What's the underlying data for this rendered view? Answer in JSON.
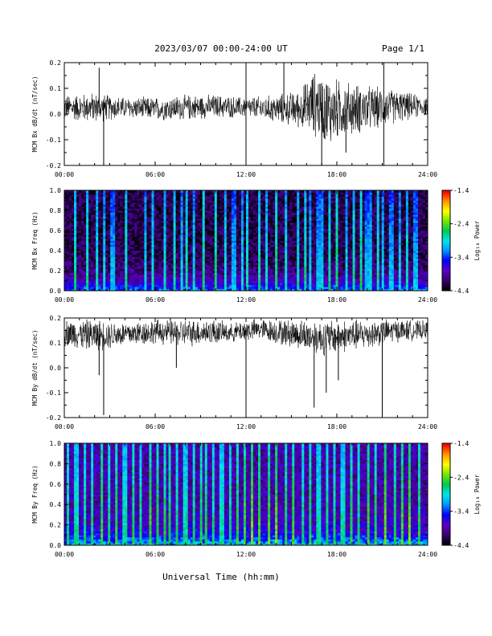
{
  "header": {
    "title": "2023/03/07  00:00-24:00 UT",
    "page": "Page 1/1"
  },
  "xaxis": {
    "label": "Universal Time (hh:mm)",
    "ticks": [
      "00:00",
      "06:00",
      "12:00",
      "18:00",
      "24:00"
    ]
  },
  "colorbar": {
    "label": "Log₁₀ Power",
    "ticks": [
      "-1.4",
      "-2.4",
      "-3.4",
      "-4.4"
    ],
    "range": [
      -4.4,
      -1.4
    ],
    "colormap": [
      "#000000",
      "#3a0070",
      "#5a00c8",
      "#0000ff",
      "#0096ff",
      "#00e6e6",
      "#00c850",
      "#78e600",
      "#ffff00",
      "#ff9600",
      "#ff0000"
    ]
  },
  "chart_data": [
    {
      "type": "line",
      "ylabel": "MCM Bx dB/dt (nT/sec)",
      "xlim": [
        0,
        24
      ],
      "ylim": [
        -0.2,
        0.2
      ],
      "yticks": [
        "0.2",
        "0.1",
        "0.0",
        "-0.1",
        "-0.2"
      ],
      "envelope": {
        "hours": [
          0,
          2,
          4,
          6,
          8,
          10,
          12,
          14,
          15.5,
          16.5,
          17.5,
          18.5,
          20,
          22,
          24
        ],
        "upper": [
          0.08,
          0.09,
          0.07,
          0.07,
          0.08,
          0.08,
          0.07,
          0.08,
          0.1,
          0.18,
          0.16,
          0.14,
          0.12,
          0.1,
          0.07
        ],
        "lower": [
          -0.03,
          -0.04,
          -0.02,
          -0.03,
          -0.03,
          -0.02,
          -0.02,
          -0.04,
          -0.06,
          -0.1,
          -0.14,
          -0.1,
          -0.08,
          -0.04,
          -0.01
        ]
      },
      "spikes": [
        {
          "hour": 2.6,
          "value": -0.21
        },
        {
          "hour": 2.3,
          "value": 0.18
        },
        {
          "hour": 12.0,
          "value": -0.21
        },
        {
          "hour": 12.0,
          "value": 0.21
        },
        {
          "hour": 14.5,
          "value": 0.2
        },
        {
          "hour": 17.0,
          "value": -0.2
        },
        {
          "hour": 18.6,
          "value": -0.15
        },
        {
          "hour": 21.1,
          "value": -0.21
        },
        {
          "hour": 21.1,
          "value": 0.2
        }
      ]
    },
    {
      "type": "heatmap",
      "ylabel": "MCM Bx Freq (Hz)",
      "xlim": [
        0,
        24
      ],
      "ylim": [
        0.0,
        1.0
      ],
      "yticks": [
        "1.0",
        "0.8",
        "0.6",
        "0.4",
        "0.2",
        "0.0"
      ],
      "value_unit": "Log10 Power",
      "background_power": -4.2,
      "low_freq_power": -3.0,
      "broadband_hours": [
        0.7,
        1.5,
        2.2,
        2.7,
        3.2,
        4.1,
        5.3,
        5.8,
        6.6,
        7.3,
        7.7,
        8.1,
        8.5,
        9.2,
        10.0,
        10.6,
        11.2,
        11.7,
        12.1,
        12.9,
        13.4,
        14.0,
        14.6,
        15.4,
        15.9,
        16.3,
        16.8,
        17.1,
        17.5,
        18.0,
        18.7,
        19.1,
        19.6,
        20.0,
        20.3,
        20.7,
        21.1,
        21.6,
        22.1,
        22.6,
        23.2
      ]
    },
    {
      "type": "line",
      "ylabel": "MCM By dB/dt (nT/sec)",
      "xlim": [
        0,
        24
      ],
      "ylim": [
        -0.2,
        0.2
      ],
      "yticks": [
        "0.2",
        "0.1",
        "0.0",
        "-0.1",
        "-0.2"
      ],
      "envelope": {
        "hours": [
          0,
          2,
          4,
          6,
          8,
          10,
          11,
          12,
          13,
          14,
          16,
          17,
          18,
          20,
          22,
          24
        ],
        "upper": [
          0.2,
          0.2,
          0.19,
          0.2,
          0.2,
          0.2,
          0.18,
          0.2,
          0.2,
          0.2,
          0.2,
          0.2,
          0.2,
          0.2,
          0.2,
          0.19
        ],
        "lower": [
          0.08,
          0.06,
          0.08,
          0.09,
          0.08,
          0.09,
          0.1,
          0.1,
          0.11,
          0.09,
          0.06,
          0.04,
          0.05,
          0.07,
          0.1,
          0.11
        ]
      },
      "spikes": [
        {
          "hour": 2.6,
          "value": -0.19
        },
        {
          "hour": 2.3,
          "value": -0.03
        },
        {
          "hour": 7.4,
          "value": 0.0
        },
        {
          "hour": 12.0,
          "value": -0.2
        },
        {
          "hour": 16.5,
          "value": -0.16
        },
        {
          "hour": 17.3,
          "value": -0.1
        },
        {
          "hour": 18.1,
          "value": -0.05
        },
        {
          "hour": 21.0,
          "value": -0.2
        }
      ]
    },
    {
      "type": "heatmap",
      "ylabel": "MCM By Freq (Hz)",
      "xlim": [
        0,
        24
      ],
      "ylim": [
        0.0,
        1.0
      ],
      "yticks": [
        "1.0",
        "0.8",
        "0.6",
        "0.4",
        "0.2",
        "0.0"
      ],
      "value_unit": "Log10 Power",
      "background_power": -3.9,
      "low_freq_power": -2.8,
      "broadband_hours": [
        0.3,
        0.8,
        1.3,
        1.9,
        2.5,
        2.9,
        3.4,
        4.0,
        4.6,
        5.1,
        5.7,
        6.2,
        6.6,
        7.0,
        7.5,
        8.0,
        8.5,
        9.0,
        9.4,
        9.9,
        10.4,
        10.9,
        11.4,
        11.9,
        12.4,
        12.9,
        13.5,
        14.0,
        14.6,
        15.1,
        15.7,
        16.2,
        16.8,
        17.3,
        17.9,
        18.4,
        19.0,
        19.5,
        20.1,
        20.6,
        21.2,
        21.8,
        22.3,
        22.8,
        23.4
      ]
    }
  ]
}
